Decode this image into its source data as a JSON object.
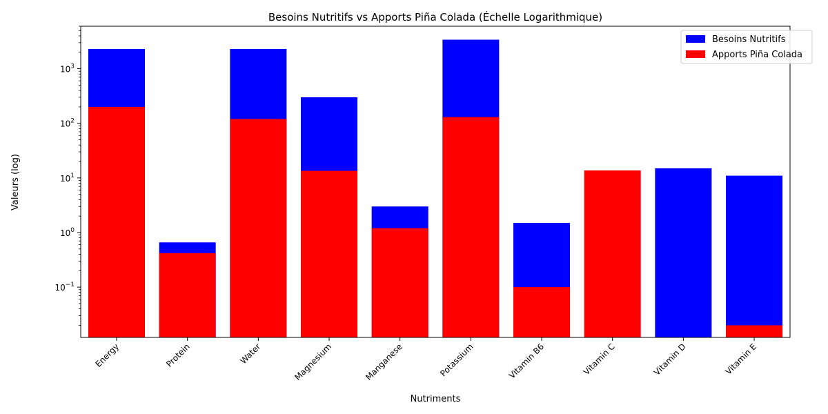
{
  "chart_data": {
    "type": "bar",
    "title": "Besoins Nutritifs vs Apports Piña Colada (Échelle Logarithmique)",
    "xlabel": "Nutriments",
    "ylabel": "Valeurs (log)",
    "yscale": "log",
    "ylim": [
      0.012,
      6000
    ],
    "yticks": [
      {
        "value": 0.1,
        "mantissa": "10",
        "exp": "−1"
      },
      {
        "value": 1,
        "mantissa": "10",
        "exp": "0"
      },
      {
        "value": 10,
        "mantissa": "10",
        "exp": "1"
      },
      {
        "value": 100,
        "mantissa": "10",
        "exp": "2"
      },
      {
        "value": 1000,
        "mantissa": "10",
        "exp": "3"
      }
    ],
    "categories": [
      "Energy",
      "Protein",
      "Water",
      "Magnesium",
      "Manganese",
      "Potassium",
      "Vitamin B6",
      "Vitamin C",
      "Vitamin D",
      "Vitamin E"
    ],
    "series": [
      {
        "name": "Besoins Nutritifs",
        "color": "#0000ff",
        "values": [
          2300,
          0.66,
          2300,
          300,
          3,
          3400,
          1.5,
          0,
          15,
          11
        ]
      },
      {
        "name": "Apports Piña Colada",
        "color": "#ff0000",
        "values": [
          200,
          0.42,
          120,
          13.5,
          1.2,
          130,
          0.1,
          13.7,
          0,
          0.02
        ]
      }
    ],
    "legend_position": "top-right",
    "grid": false
  }
}
